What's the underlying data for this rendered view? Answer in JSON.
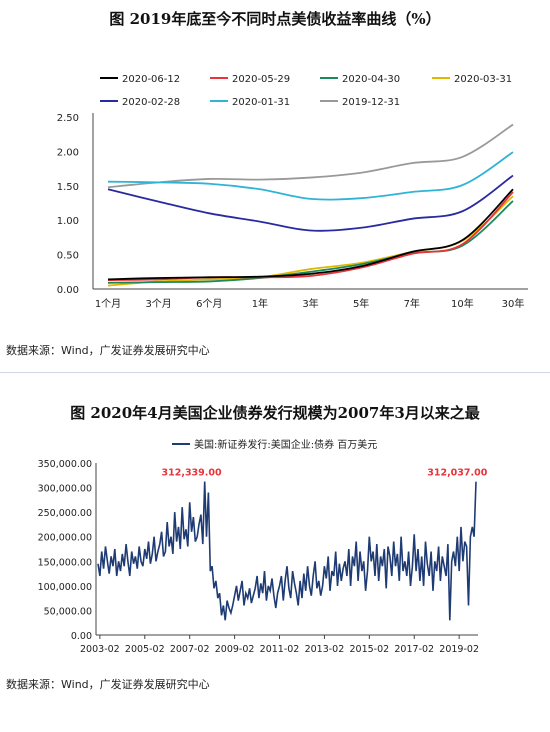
{
  "chart_data": [
    {
      "type": "line",
      "title": "图  2019年底至今不同时点美债收益率曲线（%）",
      "categories": [
        "1个月",
        "3个月",
        "6个月",
        "1年",
        "3年",
        "5年",
        "7年",
        "10年",
        "30年"
      ],
      "x_tick_labels": [
        "1个月",
        "3个月",
        "6个月",
        "1年",
        "3年",
        "5年",
        "7年",
        "10年",
        "30年"
      ],
      "y_tick_labels": [
        "0.00",
        "0.50",
        "1.00",
        "1.50",
        "2.00",
        "2.50"
      ],
      "ylim": [
        0,
        2.5
      ],
      "legend_position": "top",
      "source": "数据来源：Wind，广发证券发展研究中心",
      "series": [
        {
          "name": "2020-06-12",
          "color": "#000000",
          "values": [
            0.14,
            0.16,
            0.17,
            0.18,
            0.22,
            0.33,
            0.54,
            0.71,
            1.45
          ]
        },
        {
          "name": "2020-05-29",
          "color": "#e8343a",
          "values": [
            0.13,
            0.14,
            0.17,
            0.17,
            0.19,
            0.31,
            0.51,
            0.65,
            1.41
          ]
        },
        {
          "name": "2020-04-30",
          "color": "#1b8a5a",
          "values": [
            0.09,
            0.1,
            0.11,
            0.16,
            0.25,
            0.36,
            0.52,
            0.63,
            1.28
          ]
        },
        {
          "name": "2020-03-31",
          "color": "#e0b800",
          "values": [
            0.05,
            0.11,
            0.14,
            0.17,
            0.29,
            0.38,
            0.54,
            0.7,
            1.35
          ]
        },
        {
          "name": "2020-02-28",
          "color": "#2a2aa0",
          "values": [
            1.45,
            1.27,
            1.1,
            0.98,
            0.85,
            0.89,
            1.02,
            1.13,
            1.65
          ]
        },
        {
          "name": "2020-01-31",
          "color": "#2fb3d6",
          "values": [
            1.56,
            1.55,
            1.53,
            1.45,
            1.31,
            1.32,
            1.41,
            1.51,
            1.99
          ]
        },
        {
          "name": "2019-12-31",
          "color": "#999999",
          "values": [
            1.48,
            1.55,
            1.6,
            1.59,
            1.62,
            1.69,
            1.83,
            1.92,
            2.39
          ]
        }
      ]
    },
    {
      "type": "line",
      "title": "图  2020年4月美国企业债券发行规模为2007年3月以来之最",
      "ylim": [
        0,
        350000
      ],
      "y_tick_labels": [
        "0.00",
        "50,000.00",
        "100,000.00",
        "150,000.00",
        "200,000.00",
        "250,000.00",
        "300,000.00",
        "350,000.00"
      ],
      "x_tick_labels": [
        "2003-02",
        "2005-02",
        "2007-02",
        "2009-02",
        "2011-02",
        "2013-02",
        "2015-02",
        "2017-02",
        "2019-02"
      ],
      "x_start": "2003-01",
      "x_end": "2020-04",
      "legend_position": "top",
      "source": "数据来源：Wind，广发证券发展研究中心",
      "series": [
        {
          "name": "美国:新证券发行:美国企业:债券 百万美元",
          "color": "#1f3b73",
          "values": [
            145000,
            120000,
            170000,
            135000,
            180000,
            150000,
            125000,
            160000,
            140000,
            175000,
            120000,
            150000,
            130000,
            165000,
            140000,
            185000,
            150000,
            120000,
            170000,
            145000,
            160000,
            135000,
            180000,
            150000,
            140000,
            175000,
            155000,
            190000,
            145000,
            165000,
            200000,
            150000,
            170000,
            185000,
            210000,
            160000,
            170000,
            230000,
            180000,
            200000,
            165000,
            250000,
            190000,
            220000,
            175000,
            260000,
            195000,
            215000,
            180000,
            270000,
            210000,
            240000,
            190000,
            200000,
            225000,
            245000,
            185000,
            312339,
            200000,
            290000,
            130000,
            140000,
            95000,
            110000,
            75000,
            85000,
            40000,
            60000,
            30000,
            70000,
            55000,
            45000,
            60000,
            80000,
            100000,
            70000,
            90000,
            110000,
            60000,
            85000,
            75000,
            95000,
            65000,
            80000,
            95000,
            120000,
            75000,
            105000,
            85000,
            130000,
            70000,
            100000,
            90000,
            115000,
            80000,
            55000,
            85000,
            100000,
            120000,
            70000,
            110000,
            140000,
            95000,
            75000,
            130000,
            105000,
            85000,
            60000,
            110000,
            75000,
            125000,
            90000,
            140000,
            100000,
            80000,
            120000,
            150000,
            95000,
            110000,
            80000,
            100000,
            140000,
            115000,
            160000,
            90000,
            130000,
            120000,
            170000,
            100000,
            145000,
            110000,
            135000,
            150000,
            120000,
            175000,
            100000,
            160000,
            140000,
            190000,
            110000,
            170000,
            130000,
            150000,
            90000,
            130000,
            200000,
            150000,
            170000,
            120000,
            185000,
            110000,
            160000,
            140000,
            175000,
            95000,
            180000,
            160000,
            120000,
            190000,
            140000,
            165000,
            110000,
            200000,
            130000,
            150000,
            120000,
            170000,
            100000,
            140000,
            205000,
            130000,
            175000,
            110000,
            160000,
            100000,
            190000,
            145000,
            120000,
            170000,
            90000,
            150000,
            130000,
            180000,
            110000,
            160000,
            140000,
            120000,
            185000,
            30000,
            150000,
            170000,
            140000,
            200000,
            130000,
            220000,
            150000,
            190000,
            180000,
            60000,
            200000,
            220000,
            200000,
            312037
          ]
        }
      ],
      "annotations": [
        {
          "text": "312,339.00",
          "x": "2007-03",
          "y": 312339,
          "color": "#e8343a"
        },
        {
          "text": "312,037.00",
          "x": "2020-04",
          "y": 312037,
          "color": "#e8343a"
        }
      ]
    }
  ]
}
